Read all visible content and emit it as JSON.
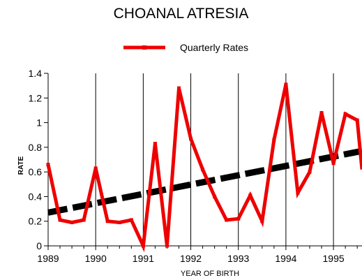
{
  "chart_data": {
    "type": "line",
    "title": "CHOANAL ATRESIA",
    "xlabel": "YEAR OF BIRTH",
    "ylabel": "RATE",
    "x_ticks": [
      "1989",
      "1990",
      "1991",
      "1992",
      "1993",
      "1994",
      "1995"
    ],
    "y_ticks": [
      "0",
      "0.2",
      "0.4",
      "0.6",
      "0.8",
      "1",
      "1.2",
      "1.4"
    ],
    "xlim": [
      1989,
      1995.6
    ],
    "ylim": [
      0,
      1.4
    ],
    "legend_position": "top-center",
    "series": [
      {
        "name": "Quarterly Rates",
        "color": "#ee0000",
        "points": [
          [
            1989.0,
            0.66
          ],
          [
            1989.25,
            0.21
          ],
          [
            1989.5,
            0.19
          ],
          [
            1989.75,
            0.21
          ],
          [
            1990.0,
            0.63
          ],
          [
            1990.25,
            0.2
          ],
          [
            1990.5,
            0.19
          ],
          [
            1990.75,
            0.21
          ],
          [
            1991.0,
            0.0
          ],
          [
            1991.25,
            0.83
          ],
          [
            1991.5,
            0.0
          ],
          [
            1991.75,
            1.28
          ],
          [
            1992.0,
            0.87
          ],
          [
            1992.25,
            0.62
          ],
          [
            1992.5,
            0.4
          ],
          [
            1992.75,
            0.21
          ],
          [
            1993.0,
            0.22
          ],
          [
            1993.25,
            0.41
          ],
          [
            1993.5,
            0.2
          ],
          [
            1993.75,
            0.86
          ],
          [
            1994.0,
            1.31
          ],
          [
            1994.25,
            0.43
          ],
          [
            1994.5,
            0.6
          ],
          [
            1994.75,
            1.08
          ],
          [
            1995.0,
            0.67
          ],
          [
            1995.25,
            1.07
          ],
          [
            1995.5,
            1.02
          ],
          [
            1995.6,
            0.62
          ]
        ]
      },
      {
        "name": "",
        "color": "#000000",
        "style": "dashed",
        "points": [
          [
            1989.0,
            0.27
          ],
          [
            1995.6,
            0.77
          ]
        ]
      }
    ]
  }
}
